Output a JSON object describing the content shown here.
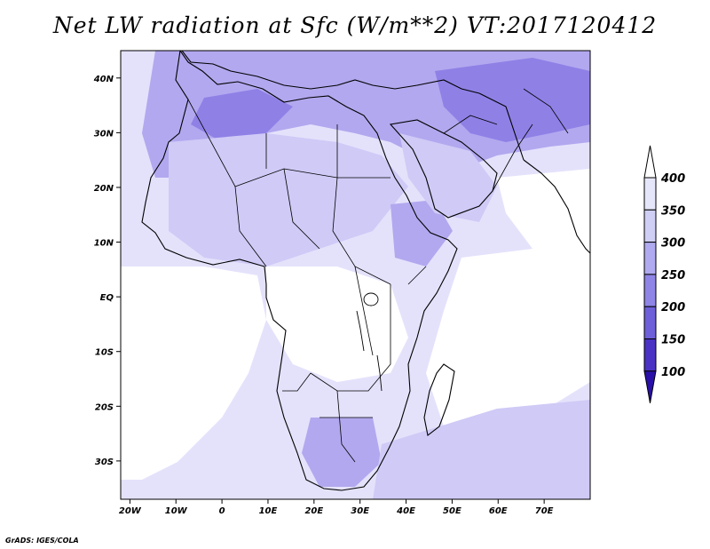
{
  "title": "Net LW radiation at Sfc (W/m**2) VT:2017120412",
  "credit": "GrADS: IGES/COLA",
  "map": {
    "lon_range": [
      -22,
      80
    ],
    "lat_range": [
      -37,
      45
    ],
    "x_ticks": [
      "20W",
      "10W",
      "0",
      "10E",
      "20E",
      "30E",
      "40E",
      "50E",
      "60E",
      "70E"
    ],
    "x_tick_values": [
      -20,
      -10,
      0,
      10,
      20,
      30,
      40,
      50,
      60,
      70
    ],
    "y_ticks": [
      "40N",
      "30N",
      "20N",
      "10N",
      "EQ",
      "10S",
      "20S",
      "30S"
    ],
    "y_tick_values": [
      40,
      30,
      20,
      10,
      0,
      -10,
      -20,
      -30
    ]
  },
  "colorbar": {
    "levels": [
      "400",
      "350",
      "300",
      "250",
      "200",
      "150",
      "100"
    ],
    "colors": [
      "#ffffff",
      "#e6e6fa",
      "#cfcff5",
      "#b0aaf0",
      "#8f85e6",
      "#6e60d9",
      "#4a32c4",
      "#2a10a8"
    ],
    "extend": "both"
  },
  "palette": {
    "ocean": "#ffffff",
    "band_350_400": "#e4e2fb",
    "band_300_350": "#cfcaf6",
    "band_250_300": "#b2a8ef",
    "band_200_250": "#8f80e6",
    "outline": "#000000"
  }
}
